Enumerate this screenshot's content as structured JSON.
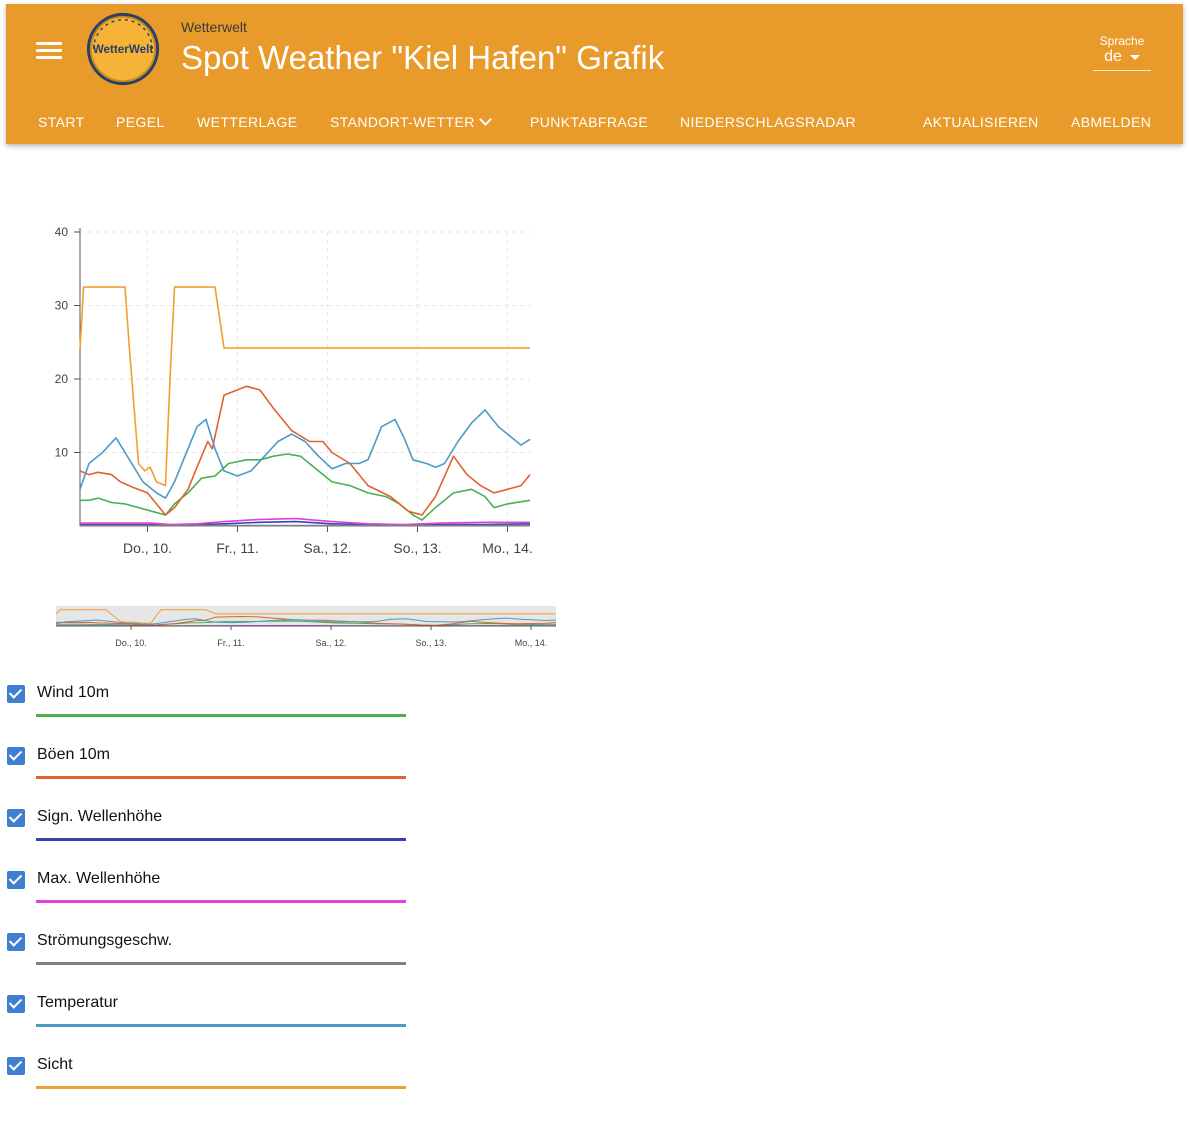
{
  "header": {
    "subtitle": "Wetterwelt",
    "title": "Spot Weather \"Kiel Hafen\" Grafik",
    "logo_text": "WetterWelt",
    "language_label": "Sprache",
    "language_value": "de"
  },
  "nav": {
    "items": [
      {
        "label": "START"
      },
      {
        "label": "PEGEL"
      },
      {
        "label": "WETTERLAGE"
      },
      {
        "label": "STANDORT-WETTER"
      },
      {
        "label": "PUNKTABFRAGE"
      },
      {
        "label": "NIEDERSCHLAGSRADAR"
      },
      {
        "label": "AKTUALISIEREN"
      },
      {
        "label": "ABMELDEN"
      }
    ]
  },
  "colors": {
    "appbar": "#e89b2a",
    "checkbox": "#3f7fd0"
  },
  "chart_data": {
    "type": "line",
    "title": "",
    "xlabel": "",
    "ylabel": "",
    "ylim": [
      0,
      40
    ],
    "xlim": [
      0,
      5
    ],
    "y_ticks": [
      10,
      20,
      30,
      40
    ],
    "x_ticks": [
      {
        "label": "Do., 10.",
        "x": 0.75
      },
      {
        "label": "Fr., 11.",
        "x": 1.75
      },
      {
        "label": "Sa., 12.",
        "x": 2.75
      },
      {
        "label": "So., 13.",
        "x": 3.75
      },
      {
        "label": "Mo., 14.",
        "x": 4.75
      }
    ],
    "grid": true,
    "series": [
      {
        "name": "Wind 10m",
        "color": "#4caf50",
        "points": [
          [
            0,
            3.5
          ],
          [
            0.1,
            3.5
          ],
          [
            0.2,
            3.8
          ],
          [
            0.35,
            3.2
          ],
          [
            0.5,
            3.0
          ],
          [
            0.65,
            2.5
          ],
          [
            0.8,
            2.0
          ],
          [
            0.95,
            1.5
          ],
          [
            1.05,
            3.0
          ],
          [
            1.2,
            4.5
          ],
          [
            1.35,
            6.5
          ],
          [
            1.5,
            6.8
          ],
          [
            1.65,
            8.5
          ],
          [
            1.85,
            9.0
          ],
          [
            2.0,
            9.0
          ],
          [
            2.15,
            9.5
          ],
          [
            2.3,
            9.8
          ],
          [
            2.45,
            9.5
          ],
          [
            2.6,
            8.0
          ],
          [
            2.8,
            6.0
          ],
          [
            3.0,
            5.5
          ],
          [
            3.2,
            4.5
          ],
          [
            3.4,
            4.0
          ],
          [
            3.55,
            3.0
          ],
          [
            3.7,
            1.5
          ],
          [
            3.8,
            0.8
          ],
          [
            3.95,
            2.5
          ],
          [
            4.15,
            4.5
          ],
          [
            4.35,
            5.0
          ],
          [
            4.5,
            4.0
          ],
          [
            4.6,
            2.5
          ],
          [
            4.75,
            3.0
          ],
          [
            5.0,
            3.5
          ]
        ]
      },
      {
        "name": "Böen 10m",
        "color": "#e0622e",
        "points": [
          [
            0,
            7.5
          ],
          [
            0.1,
            7.0
          ],
          [
            0.2,
            7.3
          ],
          [
            0.35,
            7.0
          ],
          [
            0.45,
            6.0
          ],
          [
            0.6,
            5.2
          ],
          [
            0.75,
            4.5
          ],
          [
            0.85,
            3.0
          ],
          [
            0.95,
            1.5
          ],
          [
            1.05,
            2.5
          ],
          [
            1.2,
            5.0
          ],
          [
            1.3,
            8.0
          ],
          [
            1.42,
            11.5
          ],
          [
            1.47,
            10.5
          ],
          [
            1.6,
            17.8
          ],
          [
            1.85,
            19.0
          ],
          [
            2.0,
            18.5
          ],
          [
            2.15,
            16.0
          ],
          [
            2.35,
            13.0
          ],
          [
            2.55,
            11.5
          ],
          [
            2.7,
            11.5
          ],
          [
            2.8,
            10.0
          ],
          [
            3.0,
            8.5
          ],
          [
            3.2,
            5.5
          ],
          [
            3.45,
            4.0
          ],
          [
            3.65,
            2.0
          ],
          [
            3.8,
            1.5
          ],
          [
            3.95,
            4.0
          ],
          [
            4.15,
            9.5
          ],
          [
            4.3,
            7.0
          ],
          [
            4.45,
            5.5
          ],
          [
            4.6,
            4.5
          ],
          [
            4.75,
            5.0
          ],
          [
            4.9,
            5.5
          ],
          [
            5.0,
            7.0
          ]
        ]
      },
      {
        "name": "Sign. Wellenhöhe",
        "color": "#3f3fb5",
        "points": [
          [
            0,
            0.2
          ],
          [
            0.8,
            0.2
          ],
          [
            1.0,
            0.1
          ],
          [
            1.3,
            0.2
          ],
          [
            1.6,
            0.3
          ],
          [
            2.0,
            0.5
          ],
          [
            2.4,
            0.6
          ],
          [
            2.8,
            0.3
          ],
          [
            3.2,
            0.2
          ],
          [
            3.6,
            0.1
          ],
          [
            4.0,
            0.2
          ],
          [
            4.5,
            0.2
          ],
          [
            5.0,
            0.3
          ]
        ]
      },
      {
        "name": "Max. Wellenhöhe",
        "color": "#e040e0",
        "points": [
          [
            0,
            0.4
          ],
          [
            0.8,
            0.4
          ],
          [
            1.0,
            0.2
          ],
          [
            1.3,
            0.3
          ],
          [
            1.6,
            0.6
          ],
          [
            2.0,
            0.9
          ],
          [
            2.4,
            1.0
          ],
          [
            2.8,
            0.6
          ],
          [
            3.2,
            0.3
          ],
          [
            3.6,
            0.2
          ],
          [
            4.0,
            0.4
          ],
          [
            4.5,
            0.5
          ],
          [
            5.0,
            0.5
          ]
        ]
      },
      {
        "name": "Strömungsgeschw.",
        "color": "#808080",
        "points": [
          [
            0,
            0.05
          ],
          [
            5.0,
            0.05
          ]
        ]
      },
      {
        "name": "Temperatur",
        "color": "#4a9cc4",
        "points": [
          [
            0,
            5.0
          ],
          [
            0.1,
            8.5
          ],
          [
            0.25,
            10.0
          ],
          [
            0.4,
            12.0
          ],
          [
            0.55,
            9.0
          ],
          [
            0.7,
            6.0
          ],
          [
            0.85,
            4.5
          ],
          [
            0.95,
            3.8
          ],
          [
            1.05,
            6.0
          ],
          [
            1.2,
            10.5
          ],
          [
            1.3,
            13.5
          ],
          [
            1.4,
            14.5
          ],
          [
            1.5,
            10.5
          ],
          [
            1.6,
            7.5
          ],
          [
            1.75,
            6.8
          ],
          [
            1.9,
            7.5
          ],
          [
            2.05,
            9.5
          ],
          [
            2.2,
            11.5
          ],
          [
            2.35,
            12.5
          ],
          [
            2.5,
            11.5
          ],
          [
            2.65,
            9.5
          ],
          [
            2.8,
            7.8
          ],
          [
            2.95,
            8.5
          ],
          [
            3.1,
            8.5
          ],
          [
            3.2,
            9.0
          ],
          [
            3.35,
            13.5
          ],
          [
            3.5,
            14.5
          ],
          [
            3.6,
            12.0
          ],
          [
            3.7,
            9.0
          ],
          [
            3.85,
            8.5
          ],
          [
            3.95,
            8.0
          ],
          [
            4.05,
            8.5
          ],
          [
            4.2,
            11.5
          ],
          [
            4.35,
            14.0
          ],
          [
            4.5,
            15.8
          ],
          [
            4.65,
            13.5
          ],
          [
            4.8,
            12.0
          ],
          [
            4.9,
            11.0
          ],
          [
            5.0,
            11.8
          ]
        ]
      },
      {
        "name": "Sicht",
        "color": "#f0a030",
        "points": [
          [
            0,
            24.0
          ],
          [
            0.04,
            32.5
          ],
          [
            0.5,
            32.5
          ],
          [
            0.55,
            24.0
          ],
          [
            0.65,
            8.5
          ],
          [
            0.72,
            7.5
          ],
          [
            0.78,
            8.0
          ],
          [
            0.85,
            6.0
          ],
          [
            0.95,
            5.5
          ],
          [
            1.0,
            20.0
          ],
          [
            1.05,
            32.5
          ],
          [
            1.5,
            32.5
          ],
          [
            1.6,
            24.2
          ],
          [
            5.0,
            24.2
          ]
        ]
      }
    ]
  },
  "navigator": {
    "x_ticks": [
      {
        "label": "Do., 10.",
        "x": 0.75
      },
      {
        "label": "Fr., 11.",
        "x": 1.75
      },
      {
        "label": "Sa., 12.",
        "x": 2.75
      },
      {
        "label": "So., 13.",
        "x": 3.75
      },
      {
        "label": "Mo., 14.",
        "x": 4.75
      }
    ]
  },
  "legend": {
    "items": [
      {
        "label": "Wind 10m",
        "color": "#4caf50",
        "checked": true
      },
      {
        "label": "Böen 10m",
        "color": "#e0622e",
        "checked": true
      },
      {
        "label": "Sign. Wellenhöhe",
        "color": "#3f3fb5",
        "checked": true
      },
      {
        "label": "Max. Wellenhöhe",
        "color": "#e040e0",
        "checked": true
      },
      {
        "label": "Strömungsgeschw.",
        "color": "#808080",
        "checked": true
      },
      {
        "label": "Temperatur",
        "color": "#4a9cc4",
        "checked": true
      },
      {
        "label": "Sicht",
        "color": "#f0a030",
        "checked": true
      }
    ]
  }
}
